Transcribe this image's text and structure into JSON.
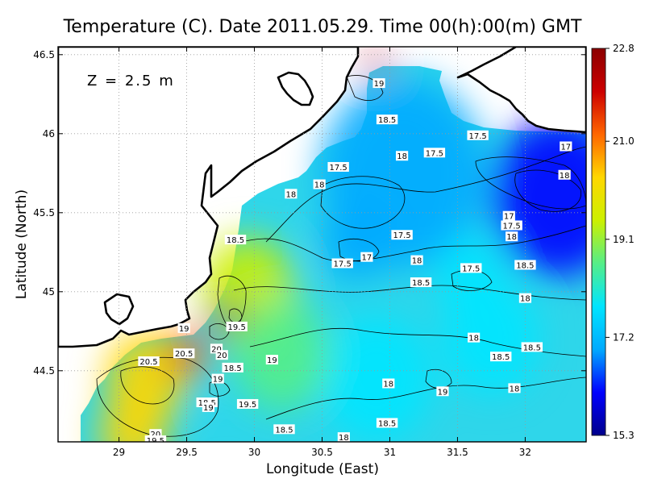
{
  "chart_data": {
    "type": "heatmap",
    "title": "Temperature (C). Date 2011.05.29. Time 00(h):00(m) GMT",
    "xlabel": "Longitude (East)",
    "ylabel": "Latitude (North)",
    "annotation": "Z = 2.5 m",
    "xlim": [
      28.55,
      32.45
    ],
    "ylim": [
      44.05,
      46.55
    ],
    "x_ticks": [
      {
        "value": 29,
        "label": "29"
      },
      {
        "value": 29.5,
        "label": "29.5"
      },
      {
        "value": 30,
        "label": "30"
      },
      {
        "value": 30.5,
        "label": "30.5"
      },
      {
        "value": 31,
        "label": "31"
      },
      {
        "value": 31.5,
        "label": "31.5"
      },
      {
        "value": 32,
        "label": "32"
      }
    ],
    "y_ticks": [
      {
        "value": 44.5,
        "label": "44.5"
      },
      {
        "value": 45,
        "label": "45"
      },
      {
        "value": 45.5,
        "label": "45.5"
      },
      {
        "value": 46,
        "label": "46"
      },
      {
        "value": 46.5,
        "label": "46.5"
      }
    ],
    "grid": true,
    "colorbar": {
      "min": 15.3,
      "max": 22.8,
      "tick_labels": [
        {
          "value": 22.8,
          "label": "22.8"
        },
        {
          "value": 21.0,
          "label": "21.0"
        },
        {
          "value": 19.1,
          "label": "19.1"
        },
        {
          "value": 17.2,
          "label": "17.2"
        },
        {
          "value": 15.3,
          "label": "15.3"
        }
      ],
      "colors": [
        "#00008b",
        "#0000ff",
        "#00aaff",
        "#00e5ff",
        "#55ee88",
        "#ccf000",
        "#ffd700",
        "#ff6600",
        "#cc0000",
        "#8b0000"
      ]
    },
    "contour_labels": [
      {
        "x": 30.92,
        "y": 46.32,
        "label": "19"
      },
      {
        "x": 30.98,
        "y": 46.09,
        "label": "18.5"
      },
      {
        "x": 31.65,
        "y": 45.99,
        "label": "17.5"
      },
      {
        "x": 32.3,
        "y": 45.92,
        "label": "17"
      },
      {
        "x": 31.09,
        "y": 45.86,
        "label": "18"
      },
      {
        "x": 31.33,
        "y": 45.88,
        "label": "17.5"
      },
      {
        "x": 30.62,
        "y": 45.79,
        "label": "17.5"
      },
      {
        "x": 30.48,
        "y": 45.68,
        "label": "18"
      },
      {
        "x": 30.27,
        "y": 45.62,
        "label": "18"
      },
      {
        "x": 32.29,
        "y": 45.74,
        "label": "18"
      },
      {
        "x": 31.88,
        "y": 45.48,
        "label": "17"
      },
      {
        "x": 31.9,
        "y": 45.42,
        "label": "17.5"
      },
      {
        "x": 31.9,
        "y": 45.35,
        "label": "18"
      },
      {
        "x": 31.09,
        "y": 45.36,
        "label": "17.5"
      },
      {
        "x": 29.86,
        "y": 45.33,
        "label": "18.5"
      },
      {
        "x": 30.83,
        "y": 45.22,
        "label": "17"
      },
      {
        "x": 30.65,
        "y": 45.18,
        "label": "17.5"
      },
      {
        "x": 31.2,
        "y": 45.2,
        "label": "18"
      },
      {
        "x": 31.6,
        "y": 45.15,
        "label": "17.5"
      },
      {
        "x": 32.0,
        "y": 45.17,
        "label": "18.5"
      },
      {
        "x": 31.23,
        "y": 45.06,
        "label": "18.5"
      },
      {
        "x": 32.0,
        "y": 44.96,
        "label": "18"
      },
      {
        "x": 29.48,
        "y": 44.77,
        "label": "19"
      },
      {
        "x": 29.87,
        "y": 44.78,
        "label": "19.5"
      },
      {
        "x": 29.72,
        "y": 44.64,
        "label": "20"
      },
      {
        "x": 29.48,
        "y": 44.61,
        "label": "20.5"
      },
      {
        "x": 29.76,
        "y": 44.6,
        "label": "20"
      },
      {
        "x": 29.22,
        "y": 44.56,
        "label": "20.5"
      },
      {
        "x": 29.84,
        "y": 44.52,
        "label": "18.5"
      },
      {
        "x": 30.13,
        "y": 44.57,
        "label": "19"
      },
      {
        "x": 31.62,
        "y": 44.71,
        "label": "18"
      },
      {
        "x": 32.05,
        "y": 44.65,
        "label": "18.5"
      },
      {
        "x": 31.82,
        "y": 44.59,
        "label": "18.5"
      },
      {
        "x": 29.73,
        "y": 44.45,
        "label": "19"
      },
      {
        "x": 30.99,
        "y": 44.42,
        "label": "18"
      },
      {
        "x": 31.39,
        "y": 44.37,
        "label": "19"
      },
      {
        "x": 31.92,
        "y": 44.39,
        "label": "18"
      },
      {
        "x": 29.65,
        "y": 44.3,
        "label": "18.5"
      },
      {
        "x": 29.66,
        "y": 44.27,
        "label": "19"
      },
      {
        "x": 29.95,
        "y": 44.29,
        "label": "19.5"
      },
      {
        "x": 30.98,
        "y": 44.17,
        "label": "18.5"
      },
      {
        "x": 30.22,
        "y": 44.13,
        "label": "18.5"
      },
      {
        "x": 29.27,
        "y": 44.1,
        "label": "20"
      },
      {
        "x": 29.27,
        "y": 44.06,
        "label": "19.5"
      },
      {
        "x": 30.66,
        "y": 44.08,
        "label": "18"
      }
    ],
    "temperature_blobs": [
      {
        "x": 32.25,
        "y": 45.6,
        "t": 16.2,
        "r": 0.5
      },
      {
        "x": 31.1,
        "y": 45.75,
        "t": 17.2,
        "r": 0.6
      },
      {
        "x": 30.75,
        "y": 45.32,
        "t": 17.1,
        "r": 0.25
      },
      {
        "x": 31.6,
        "y": 45.1,
        "t": 17.6,
        "r": 0.25
      },
      {
        "x": 31.75,
        "y": 44.7,
        "t": 17.8,
        "r": 0.35
      },
      {
        "x": 30.9,
        "y": 44.45,
        "t": 18.0,
        "r": 0.4
      },
      {
        "x": 29.95,
        "y": 45.0,
        "t": 19.2,
        "r": 0.35
      },
      {
        "x": 30.2,
        "y": 44.6,
        "t": 18.9,
        "r": 0.35
      },
      {
        "x": 29.2,
        "y": 44.45,
        "t": 20.6,
        "r": 0.3
      },
      {
        "x": 29.5,
        "y": 44.6,
        "t": 21.5,
        "r": 0.15
      },
      {
        "x": 29.82,
        "y": 44.85,
        "t": 22.5,
        "r": 0.09
      },
      {
        "x": 29.7,
        "y": 44.78,
        "t": 16.5,
        "r": 0.05
      },
      {
        "x": 30.9,
        "y": 46.45,
        "t": 22.0,
        "r": 0.08
      },
      {
        "x": 29.1,
        "y": 44.1,
        "t": 20.2,
        "r": 0.25
      },
      {
        "x": 29.7,
        "y": 44.33,
        "t": 17.8,
        "r": 0.05
      }
    ]
  }
}
